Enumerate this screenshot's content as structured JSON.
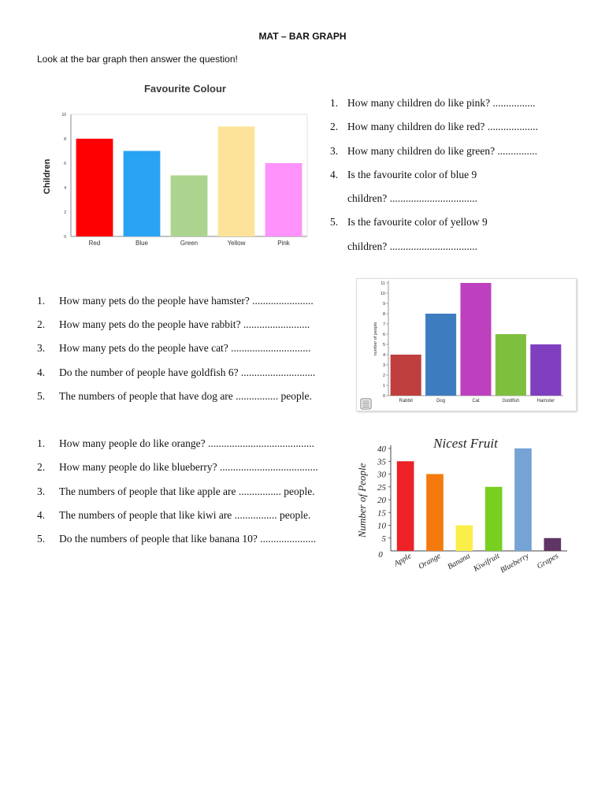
{
  "header": {
    "title": "MAT – BAR GRAPH",
    "instruction": "Look at the bar graph then answer the question!"
  },
  "section1": {
    "questions": [
      {
        "num": "1.",
        "text": "How many children do like pink? ................"
      },
      {
        "num": "2.",
        "text": "How many children do like red? ..................."
      },
      {
        "num": "3.",
        "text": "How many children do like green? ..............."
      },
      {
        "num": "4.",
        "text": "Is the favourite color of blue 9",
        "cont": "children? ................................."
      },
      {
        "num": "5.",
        "text": "Is the favourite color of yellow 9",
        "cont": "children? ................................."
      }
    ]
  },
  "section2": {
    "questions": [
      {
        "num": "1.",
        "text": "How many pets do the people have hamster? ......................."
      },
      {
        "num": "2.",
        "text": "How many pets do the people have rabbit? ........................."
      },
      {
        "num": "3.",
        "text": "How many pets do the people have cat? .............................."
      },
      {
        "num": "4.",
        "text": "Do the number of people have goldfish 6? ............................"
      },
      {
        "num": "5.",
        "text": "The numbers of people that have dog are ................ people."
      }
    ]
  },
  "section3": {
    "questions": [
      {
        "num": "1.",
        "text": "How many people do like orange? ........................................"
      },
      {
        "num": "2.",
        "text": "How many people do like blueberry? ....................................."
      },
      {
        "num": "3.",
        "text": "The numbers of people that like apple are ................ people."
      },
      {
        "num": "4.",
        "text": "The numbers of people that like kiwi are ................ people."
      },
      {
        "num": "5.",
        "text": "Do the numbers of people  that like banana 10? ....................."
      }
    ]
  },
  "chart_data": [
    {
      "type": "bar",
      "title": "Favourite Colour",
      "xlabel": "",
      "ylabel": "Children",
      "ylim": [
        0,
        10
      ],
      "yticks": [
        "0",
        "2",
        "4",
        "6",
        "8",
        "10"
      ],
      "categories": [
        "Red",
        "Blue",
        "Green",
        "Yellow",
        "Pink"
      ],
      "values": [
        8,
        7,
        5,
        9,
        6
      ],
      "colors": [
        "#fe0000",
        "#29a3f4",
        "#acd48f",
        "#fde39a",
        "#ff92fb"
      ]
    },
    {
      "type": "bar",
      "title": "",
      "xlabel": "",
      "ylabel": "number of people",
      "ylim": [
        0,
        11
      ],
      "yticks": [
        "0",
        "1",
        "2",
        "3",
        "4",
        "5",
        "6",
        "7",
        "8",
        "9",
        "10",
        "11"
      ],
      "categories": [
        "Rabbit",
        "Dog",
        "Cat",
        "Goldfish",
        "Hamster"
      ],
      "values": [
        4,
        8,
        11,
        6,
        5
      ],
      "colors": [
        "#bf3f3f",
        "#3e7cc0",
        "#bd41be",
        "#7fbf3f",
        "#7f3fbf"
      ],
      "icon": "menu-icon"
    },
    {
      "type": "bar",
      "title": "Nicest Fruit",
      "xlabel": "",
      "ylabel": "Number of People",
      "ylim": [
        0,
        40
      ],
      "yticks": [
        "5",
        "10",
        "15",
        "20",
        "25",
        "30",
        "35",
        "40"
      ],
      "origin_label": "0",
      "categories": [
        "Apple",
        "Orange",
        "Banana",
        "Kiwifruit",
        "Blueberry",
        "Grapes"
      ],
      "values": [
        35,
        30,
        10,
        25,
        40,
        5
      ],
      "colors": [
        "#ec2227",
        "#f47a0d",
        "#fbee48",
        "#78cf1f",
        "#76a3d6",
        "#5e3564"
      ]
    }
  ]
}
